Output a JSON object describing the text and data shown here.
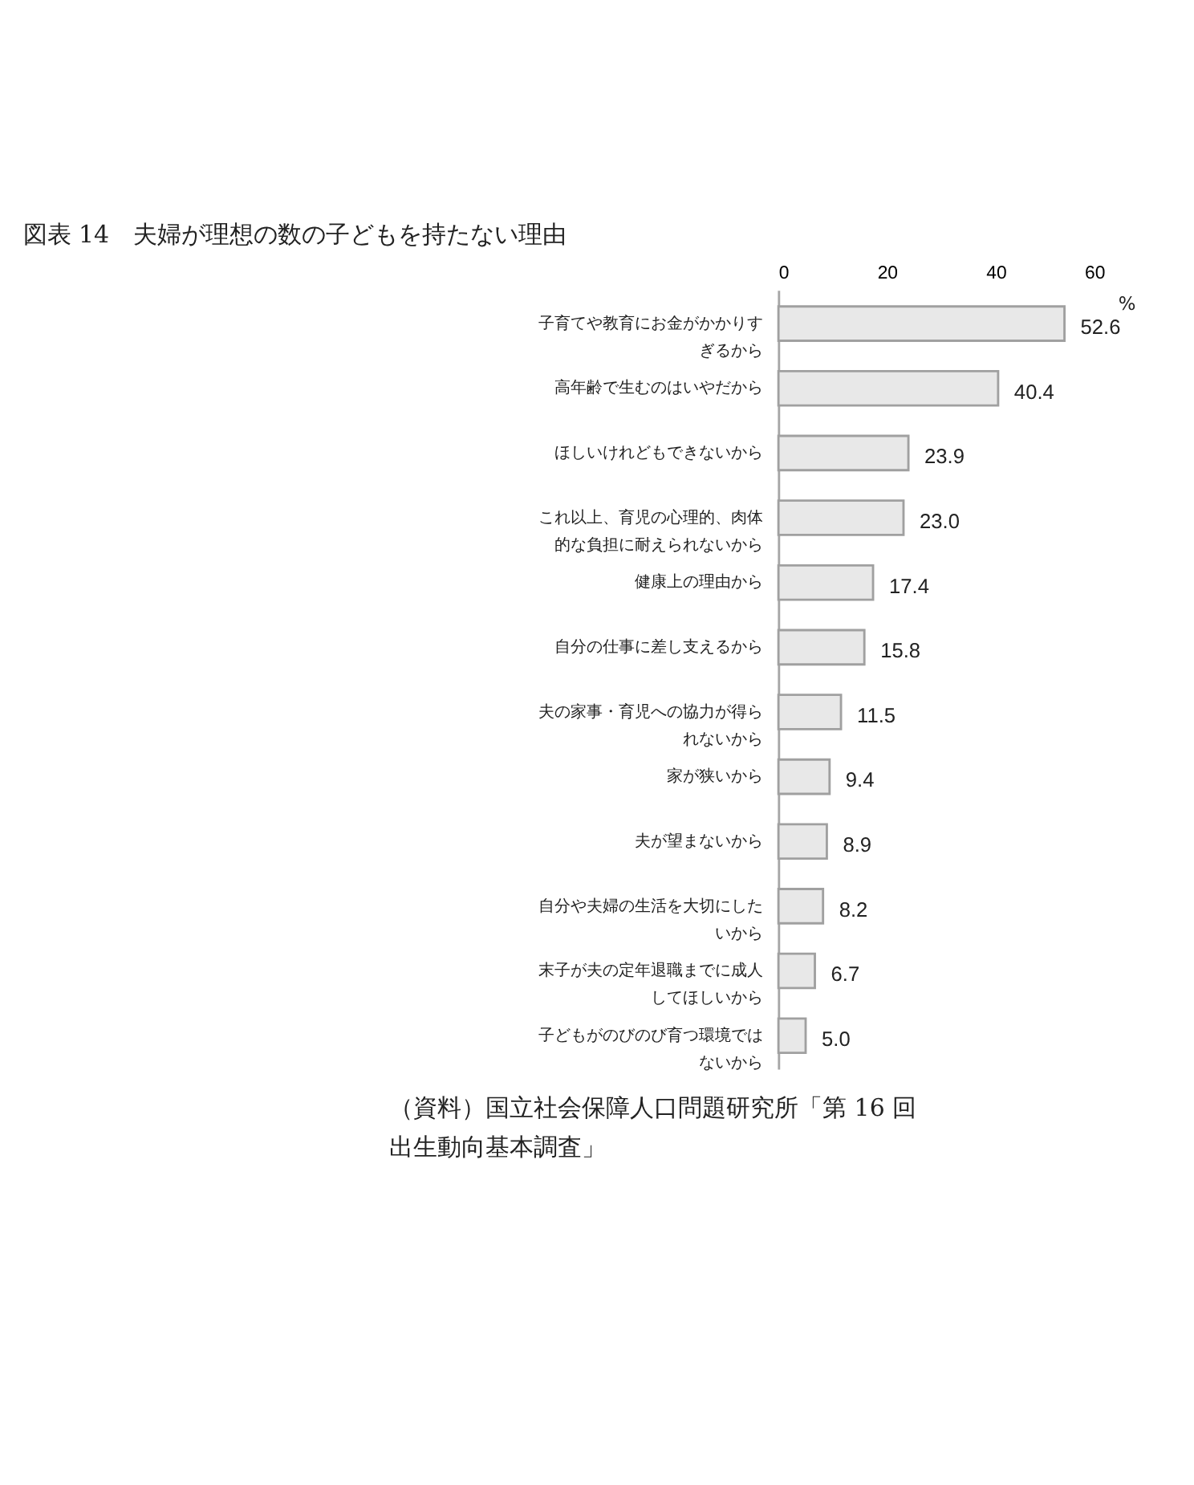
{
  "chart_data": {
    "type": "bar",
    "orientation": "horizontal",
    "title": "図表 14　夫婦が理想の数の子どもを持たない理由",
    "categories": [
      "子育てや教育にお金がかかりすぎるから",
      "高年齢で生むのはいやだから",
      "ほしいけれどもできないから",
      "これ以上、育児の心理的、肉体的な負担に耐えられないから",
      "健康上の理由から",
      "自分の仕事に差し支えるから",
      "夫の家事・育児への協力が得られないから",
      "家が狭いから",
      "夫が望まないから",
      "自分や夫婦の生活を大切にしたいから",
      "末子が夫の定年退職までに成人してほしいから",
      "子どもがのびのび育つ環境ではないから"
    ],
    "values": [
      52.6,
      40.4,
      23.9,
      23.0,
      17.4,
      15.8,
      11.5,
      9.4,
      8.9,
      8.2,
      6.7,
      5.0
    ],
    "value_labels": [
      "52.6",
      "40.4",
      "23.9",
      "23.0",
      "17.4",
      "15.8",
      "11.5",
      "9.4",
      "8.9",
      "8.2",
      "6.7",
      "5.0"
    ],
    "color": "#e8e8e8",
    "xlim": [
      0,
      60
    ],
    "xticks": [
      0,
      20,
      40,
      60
    ],
    "grid": false,
    "annotations": [
      "%",
      "（資料）国立社会保障人口問題研究所「第 16 回出生動向基本調査」"
    ]
  }
}
